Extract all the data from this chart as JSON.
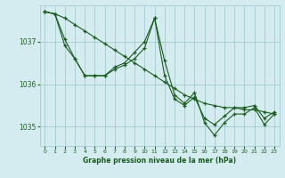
{
  "title": "Graphe pression niveau de la mer (hPa)",
  "bg_color": "#d4ecf0",
  "grid_color": "#9cc4cc",
  "line_color": "#1a5c20",
  "ylim": [
    1034.55,
    1037.85
  ],
  "xlim": [
    -0.5,
    23.5
  ],
  "yticks": [
    1035,
    1036,
    1037
  ],
  "xticks": [
    0,
    1,
    2,
    3,
    4,
    5,
    6,
    7,
    8,
    9,
    10,
    11,
    12,
    13,
    14,
    15,
    16,
    17,
    18,
    19,
    20,
    21,
    22,
    23
  ],
  "series": [
    [
      1037.7,
      1037.65,
      1037.55,
      1037.4,
      1037.25,
      1037.1,
      1036.95,
      1036.8,
      1036.65,
      1036.5,
      1036.35,
      1036.2,
      1036.05,
      1035.9,
      1035.75,
      1035.65,
      1035.55,
      1035.5,
      1035.45,
      1035.45,
      1035.4,
      1035.4,
      1035.35,
      1035.3
    ],
    [
      1037.7,
      1037.65,
      1037.05,
      1036.6,
      1036.2,
      1036.2,
      1036.2,
      1036.4,
      1036.5,
      1036.75,
      1037.0,
      1037.55,
      1036.2,
      1035.65,
      1035.5,
      1035.7,
      1035.2,
      1035.05,
      1035.25,
      1035.45,
      1035.45,
      1035.5,
      1035.2,
      1035.35
    ],
    [
      1037.7,
      1037.65,
      1036.9,
      1036.6,
      1036.2,
      1036.2,
      1036.2,
      1036.35,
      1036.45,
      1036.6,
      1036.85,
      1037.55,
      1036.55,
      1035.75,
      1035.55,
      1035.8,
      1035.1,
      1034.8,
      1035.1,
      1035.3,
      1035.3,
      1035.45,
      1035.05,
      1035.3
    ]
  ]
}
